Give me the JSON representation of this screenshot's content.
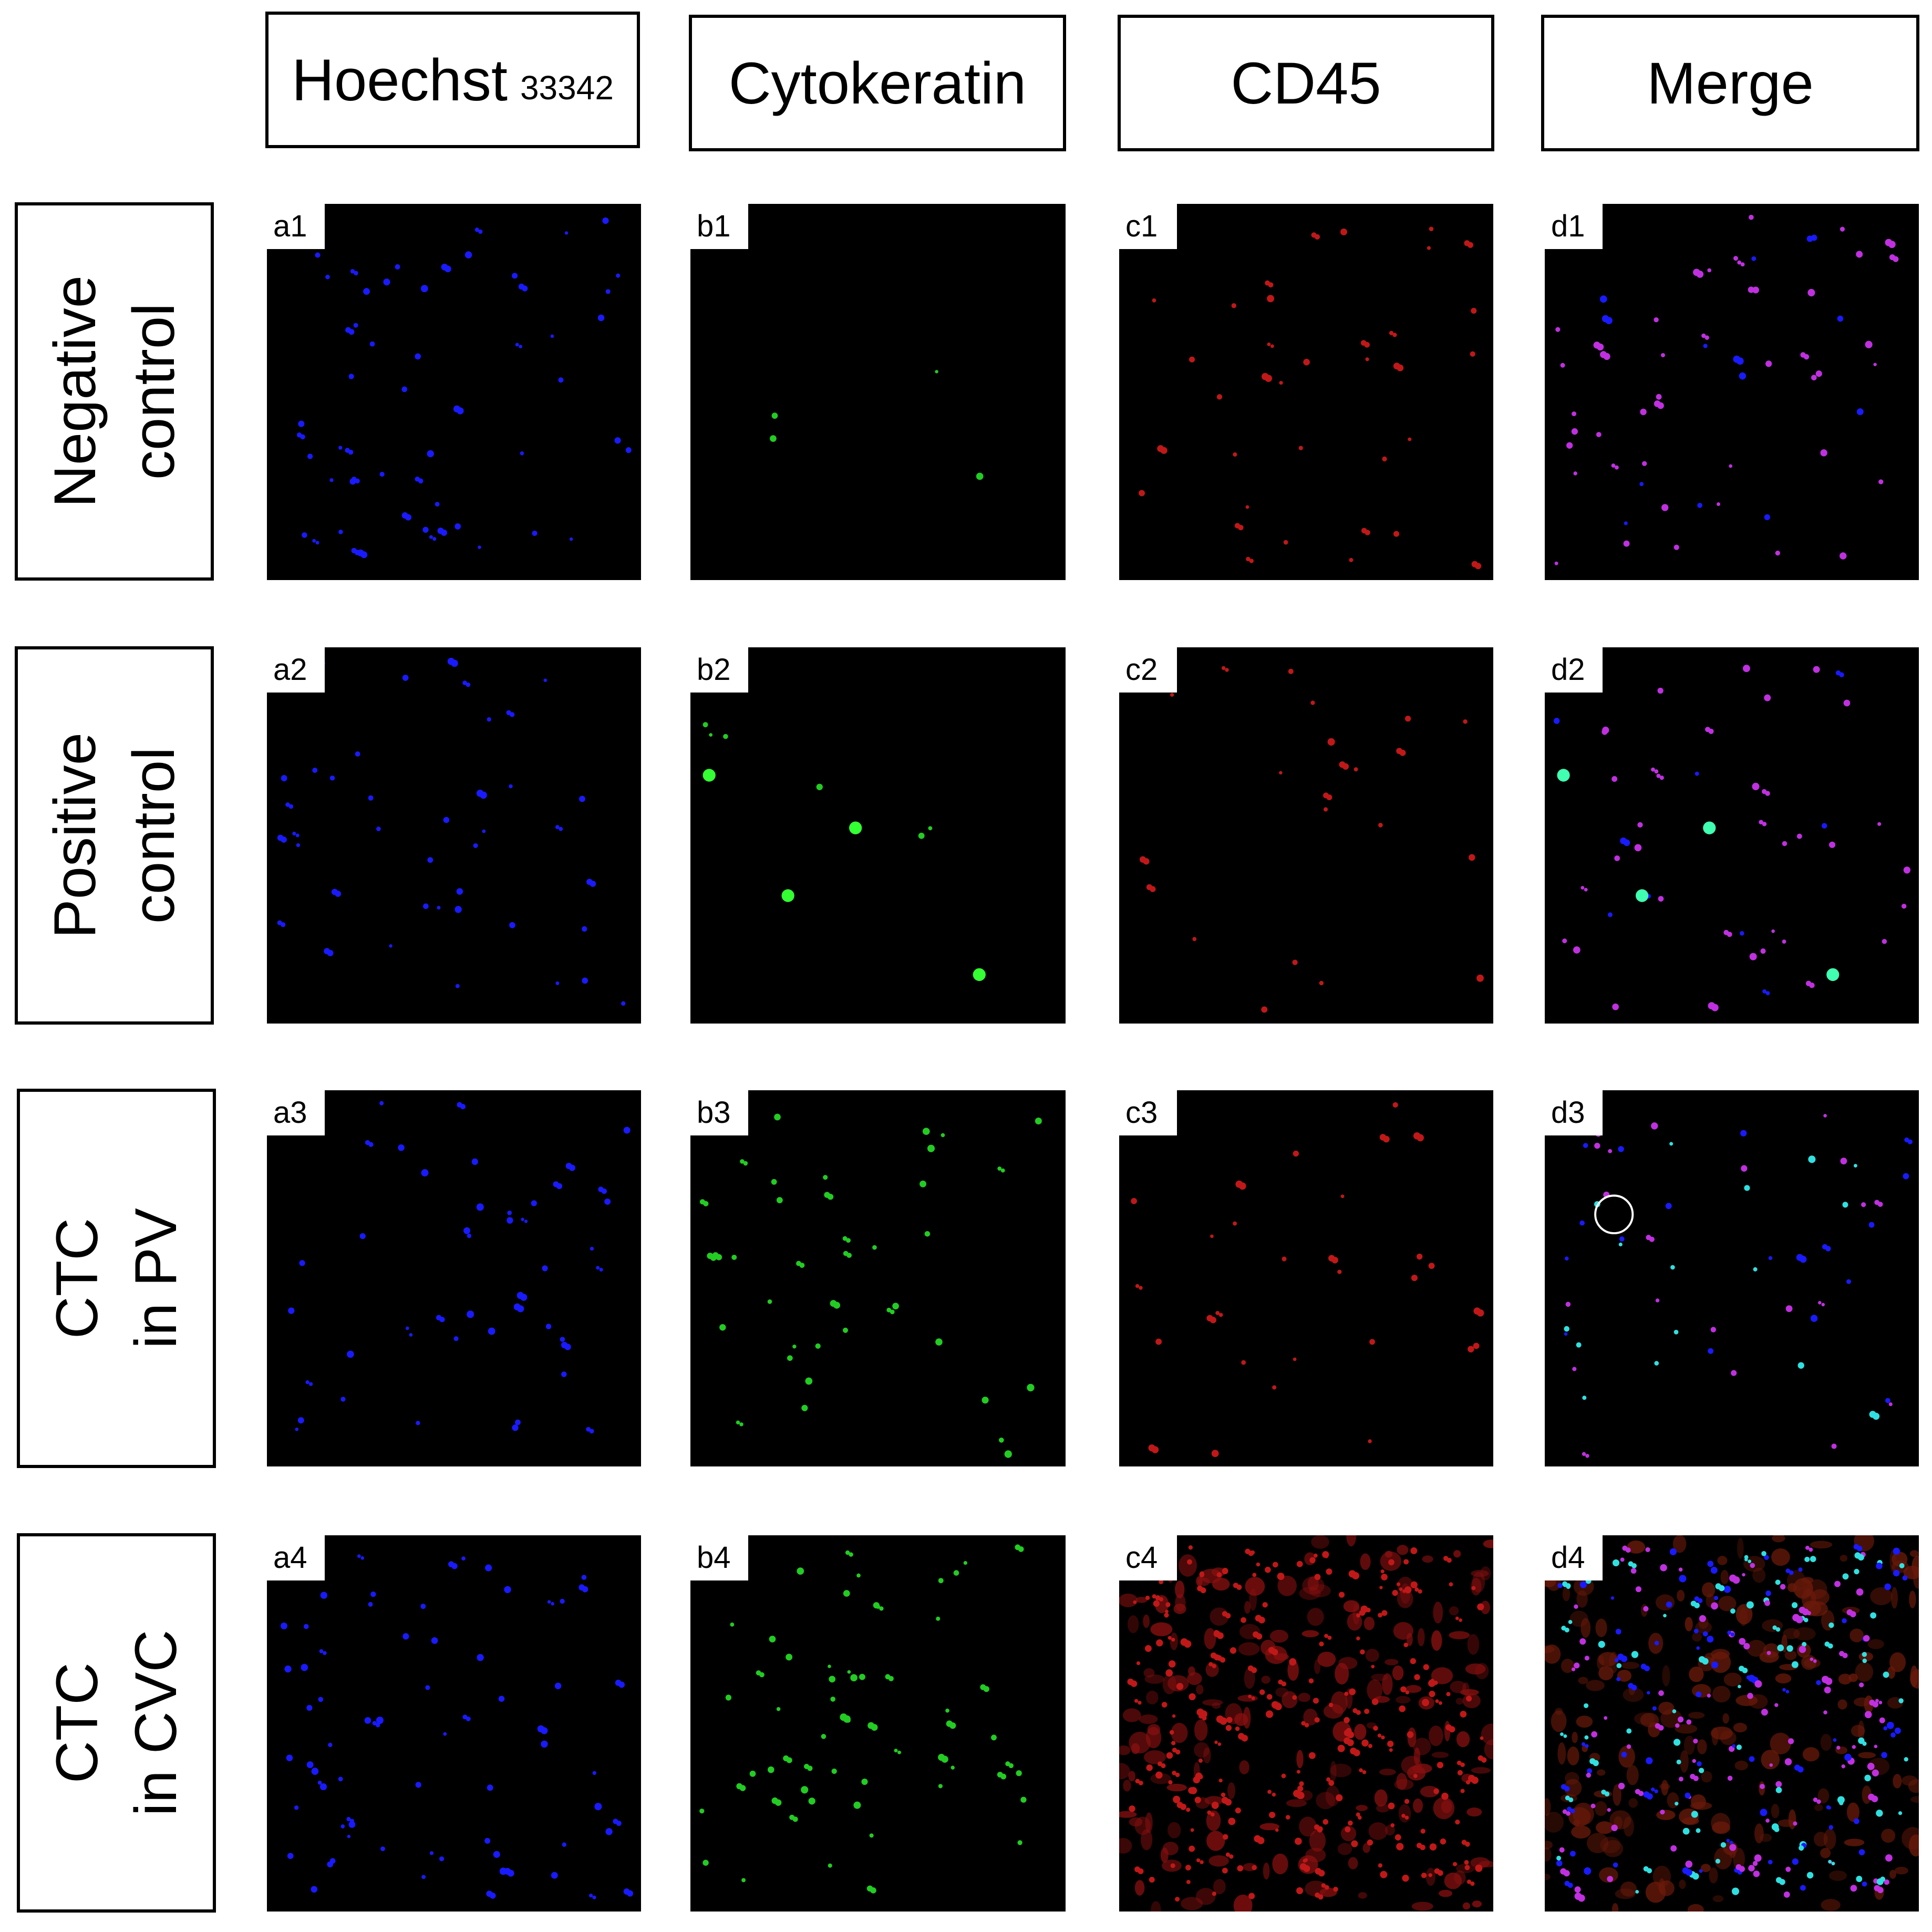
{
  "column_headers": [
    {
      "main": "Hoechst",
      "sub": "33342"
    },
    {
      "main": "Cytokeratin",
      "sub": ""
    },
    {
      "main": "CD45",
      "sub": ""
    },
    {
      "main": "Merge",
      "sub": ""
    }
  ],
  "row_headers": [
    {
      "line1": "Negative",
      "line2": "control"
    },
    {
      "line1": "Positive",
      "line2": "control"
    },
    {
      "line1": "CTC",
      "line2": "in PV"
    },
    {
      "line1": "CTC",
      "line2": "in CVC"
    }
  ],
  "panel_labels": [
    [
      "a1",
      "b1",
      "c1",
      "d1"
    ],
    [
      "a2",
      "b2",
      "c2",
      "d2"
    ],
    [
      "a3",
      "b3",
      "c3",
      "d3"
    ],
    [
      "a4",
      "b4",
      "c4",
      "d4"
    ]
  ],
  "colors": {
    "hoechst": "#1a1aff",
    "cytokeratin": "#22cc22",
    "cd45": "#c01818",
    "merge_magenta": "#c030e0",
    "merge_cyan": "#30e0e0",
    "background": "#000000"
  },
  "highlight": {
    "panel": "d3",
    "shape": "circle",
    "color": "#ffffff"
  }
}
